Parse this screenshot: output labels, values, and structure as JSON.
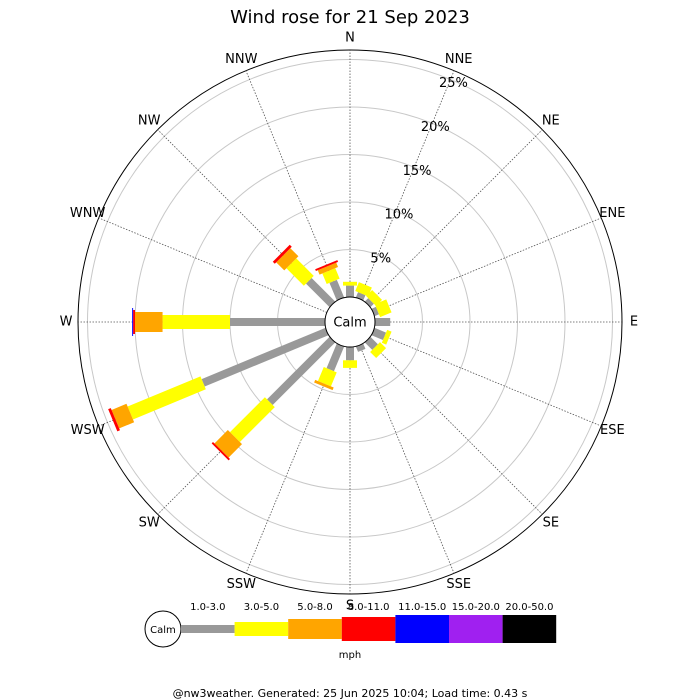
{
  "chart_data": {
    "type": "wind_rose",
    "title": "Wind rose for 21 Sep 2023",
    "categories": [
      "N",
      "NNE",
      "NE",
      "ENE",
      "E",
      "ESE",
      "SE",
      "SSE",
      "S",
      "SSW",
      "SW",
      "WSW",
      "W",
      "WNW",
      "NW",
      "NNW"
    ],
    "calm_label": "Calm",
    "units": "mph",
    "footer": "@nw3weather. Generated: 25 Jun 2025 10:04; Load time: 0.43 s",
    "ylim": [
      0,
      26
    ],
    "yticks": [
      {
        "value": 5,
        "label": "5%"
      },
      {
        "value": 10,
        "label": "10%"
      },
      {
        "value": 15,
        "label": "15%"
      },
      {
        "value": 20,
        "label": "20%"
      },
      {
        "value": 25,
        "label": "25%"
      }
    ],
    "series": [
      {
        "name": "1.0-3.0",
        "color": "#999999",
        "values": [
          1.2,
          0.6,
          0.5,
          0.5,
          1.6,
          1.3,
          1.1,
          0.6,
          1.4,
          2.8,
          9.3,
          14.1,
          10,
          0,
          3.5,
          2.0
        ]
      },
      {
        "name": "3.0-5.0",
        "color": "#ffff00",
        "values": [
          0.4,
          1.0,
          0.9,
          1.3,
          0,
          0.5,
          0.9,
          0,
          0.8,
          1.6,
          5.2,
          8.3,
          7.1,
          0,
          2.6,
          1.2
        ]
      },
      {
        "name": "5.0-8.0",
        "color": "#ffa500",
        "values": [
          0,
          0,
          0,
          0,
          0,
          0,
          0,
          0,
          0,
          0.3,
          2.0,
          1.7,
          2.9,
          0,
          1.2,
          0.5
        ]
      },
      {
        "name": "8.0-11.0",
        "color": "#ff0000",
        "values": [
          0,
          0,
          0,
          0,
          0,
          0,
          0,
          0,
          0,
          0,
          0.2,
          0.3,
          0.2,
          0,
          0.3,
          0.2
        ]
      },
      {
        "name": "11.0-15.0",
        "color": "#0000ff",
        "values": [
          0,
          0,
          0,
          0,
          0,
          0,
          0,
          0,
          0,
          0,
          0,
          0,
          0.1,
          0,
          0,
          0
        ]
      },
      {
        "name": "15.0-20.0",
        "color": "#a020f0",
        "values": [
          0,
          0,
          0,
          0,
          0,
          0,
          0,
          0,
          0,
          0,
          0,
          0,
          0,
          0,
          0,
          0
        ]
      },
      {
        "name": "20.0-50.0",
        "color": "#000000",
        "values": [
          0,
          0,
          0,
          0,
          0,
          0,
          0,
          0,
          0,
          0,
          0,
          0,
          0,
          0,
          0,
          0
        ]
      }
    ]
  }
}
